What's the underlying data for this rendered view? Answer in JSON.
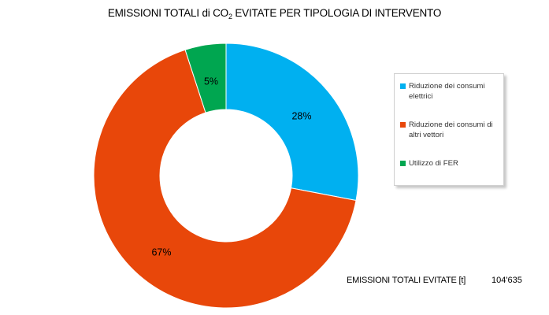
{
  "chart_data": {
    "type": "pie",
    "title_main": "EMISSIONI TOTALI di CO",
    "title_sub": "2",
    "title_rest": " EVITATE PER TIPOLOGIA DI INTERVENTO",
    "categories": [
      "Riduzione dei consumi elettrici",
      "Riduzione dei consumi di altri vettori",
      "Utilizzo di FER"
    ],
    "values": [
      28,
      67,
      5
    ],
    "data_labels": [
      "28%",
      "67%",
      "5%"
    ],
    "colors": [
      "#00B0F0",
      "#E8470A",
      "#00A650"
    ],
    "donut": true,
    "legend_position": "right"
  },
  "totals": {
    "label": "EMISSIONI TOTALI EVITATE [t]",
    "value": "104'635"
  }
}
